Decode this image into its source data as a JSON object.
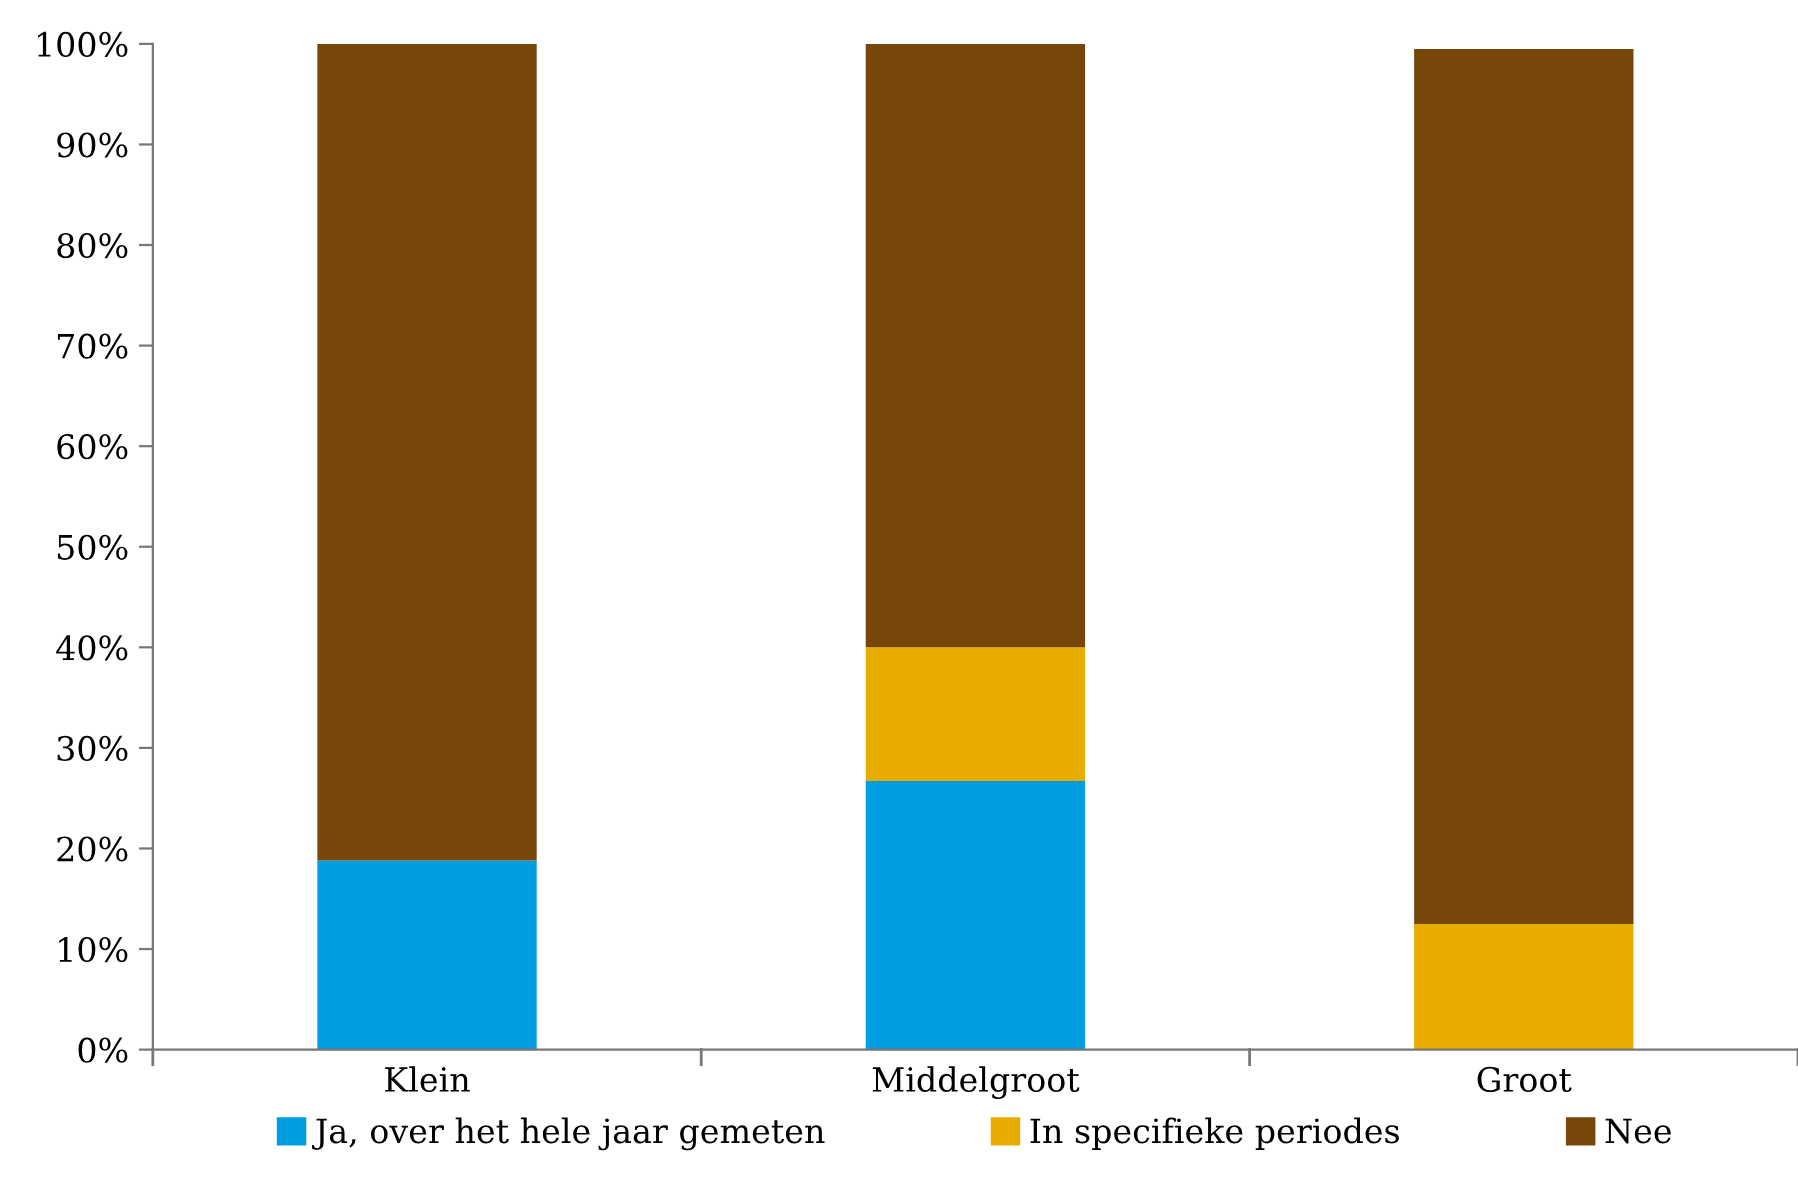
{
  "chart_data": {
    "type": "bar",
    "stacked": true,
    "categories": [
      "Klein",
      "Middelgroot",
      "Groot"
    ],
    "series": [
      {
        "name": "Ja, over het hele jaar gemeten",
        "color": "#009ee0",
        "values": [
          18.8,
          26.7,
          0
        ]
      },
      {
        "name": "In specifieke periodes",
        "color": "#e8ac00",
        "values": [
          0,
          13.3,
          12.5
        ]
      },
      {
        "name": "Nee",
        "color": "#764709",
        "values": [
          81.2,
          60.0,
          87.0
        ]
      }
    ],
    "ylim": [
      0,
      100
    ],
    "yticks": [
      {
        "value": 0,
        "label": "0%"
      },
      {
        "value": 10,
        "label": "10%"
      },
      {
        "value": 20,
        "label": "20%"
      },
      {
        "value": 30,
        "label": "30%"
      },
      {
        "value": 40,
        "label": "40%"
      },
      {
        "value": 50,
        "label": "50%"
      },
      {
        "value": 60,
        "label": "60%"
      },
      {
        "value": 70,
        "label": "70%"
      },
      {
        "value": 80,
        "label": "80%"
      },
      {
        "value": 90,
        "label": "90%"
      },
      {
        "value": 100,
        "label": "100%"
      }
    ],
    "grid": false,
    "legend": "bottom"
  }
}
